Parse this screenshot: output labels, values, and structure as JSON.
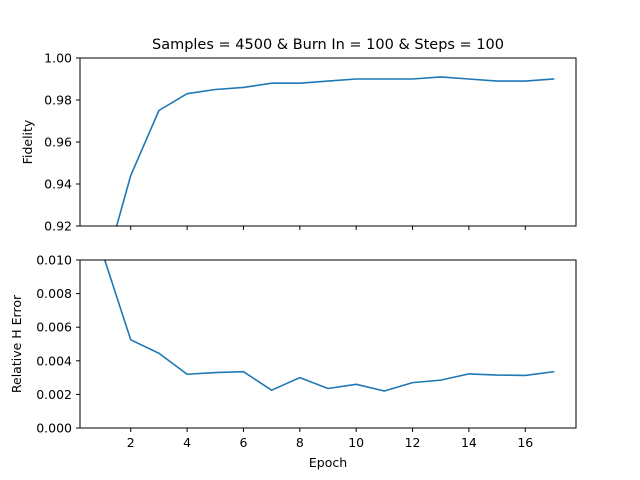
{
  "chart_data": [
    {
      "type": "line",
      "title": "Samples = 4500 & Burn In = 100 & Steps = 100",
      "xlabel": "",
      "ylabel": "Fidelity",
      "xlim": [
        0.2,
        17.8
      ],
      "ylim": [
        0.92,
        1.0
      ],
      "yticks": [
        "0.92",
        "0.94",
        "0.96",
        "0.98",
        "1.00"
      ],
      "ytick_values": [
        0.92,
        0.94,
        0.96,
        0.98,
        1.0
      ],
      "xtick_values": [
        2,
        4,
        6,
        8,
        10,
        12,
        14,
        16
      ],
      "xticks_labeled": false,
      "grid": false,
      "series": [
        {
          "color": "#1f77b4",
          "x": [
            1,
            2,
            3,
            4,
            5,
            6,
            7,
            8,
            9,
            10,
            11,
            12,
            13,
            14,
            15,
            16,
            17
          ],
          "values": [
            0.896,
            0.944,
            0.975,
            0.983,
            0.985,
            0.986,
            0.988,
            0.988,
            0.989,
            0.99,
            0.99,
            0.99,
            0.991,
            0.99,
            0.989,
            0.989,
            0.99
          ]
        }
      ]
    },
    {
      "type": "line",
      "title": "",
      "xlabel": "Epoch",
      "ylabel": "Relative H Error",
      "xlim": [
        0.2,
        17.8
      ],
      "ylim": [
        0.0,
        0.01
      ],
      "yticks": [
        "0.000",
        "0.002",
        "0.004",
        "0.006",
        "0.008",
        "0.010"
      ],
      "ytick_values": [
        0.0,
        0.002,
        0.004,
        0.006,
        0.008,
        0.01
      ],
      "xticks": [
        "2",
        "4",
        "6",
        "8",
        "10",
        "12",
        "14",
        "16"
      ],
      "xtick_values": [
        2,
        4,
        6,
        8,
        10,
        12,
        14,
        16
      ],
      "grid": false,
      "series": [
        {
          "color": "#1f77b4",
          "x": [
            1,
            2,
            3,
            4,
            5,
            6,
            7,
            8,
            9,
            10,
            11,
            12,
            13,
            14,
            15,
            16,
            17
          ],
          "values": [
            0.0104,
            0.00525,
            0.00445,
            0.0032,
            0.0033,
            0.00335,
            0.00225,
            0.003,
            0.00235,
            0.0026,
            0.0022,
            0.0027,
            0.00285,
            0.00322,
            0.00315,
            0.00313,
            0.00335
          ]
        }
      ]
    }
  ]
}
